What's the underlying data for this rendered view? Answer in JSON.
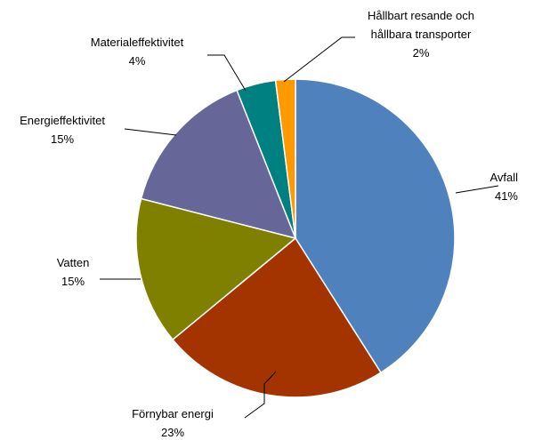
{
  "chart_data": {
    "type": "pie",
    "title": "",
    "start_angle_deg": 0,
    "direction": "clockwise",
    "slices": [
      {
        "label": "Avfall",
        "value": 41,
        "value_label": "41%",
        "color": "#4F81BD"
      },
      {
        "label": "Förnybar energi",
        "value": 23,
        "value_label": "23%",
        "color": "#A33400"
      },
      {
        "label": "Vatten",
        "value": 15,
        "value_label": "15%",
        "color": "#808000"
      },
      {
        "label": "Energieffektivitet",
        "value": 15,
        "value_label": "15%",
        "color": "#666699"
      },
      {
        "label": "Materialeffektivitet",
        "value": 4,
        "value_label": "4%",
        "color": "#008080"
      },
      {
        "label": "Hållbart resande och hållbara transporter",
        "label_lines": [
          "Hållbart resande och",
          "hållbara transporter"
        ],
        "value": 2,
        "value_label": "2%",
        "color": "#FF9900"
      }
    ]
  }
}
